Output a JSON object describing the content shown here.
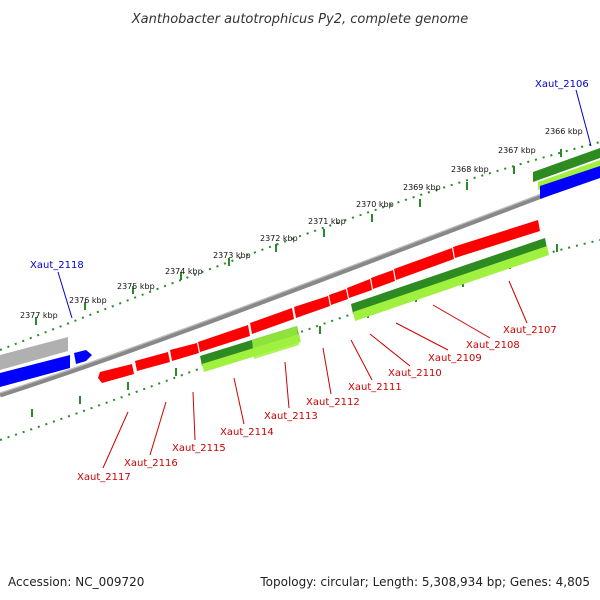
{
  "title": "Xanthobacter autotrophicus Py2, complete genome",
  "footer": {
    "accession": "Accession: NC_009720",
    "stats": "Topology: circular; Length: 5,308,934 bp; Genes: 4,805"
  },
  "colors": {
    "forward_cds": "#ff0000",
    "reverse_cds_dark": "#2e8b22",
    "reverse_cds_light": "#a0f040",
    "forward_gene": "#0000ff",
    "backbone": "#888888",
    "ticks": "#2a8a2a",
    "label_blue": "#0000cc",
    "label_red": "#cc0000"
  },
  "ticks": [
    "2366 kbp",
    "2367 kbp",
    "2368 kbp",
    "2369 kbp",
    "2370 kbp",
    "2371 kbp",
    "2372 kbp",
    "2373 kbp",
    "2374 kbp",
    "2375 kbp",
    "2376 kbp",
    "2377 kbp"
  ],
  "gene_labels": [
    {
      "text": "Xaut_2106",
      "color": "blue"
    },
    {
      "text": "Xaut_2118",
      "color": "blue"
    },
    {
      "text": "Xaut_2107",
      "color": "red"
    },
    {
      "text": "Xaut_2108",
      "color": "red"
    },
    {
      "text": "Xaut_2109",
      "color": "red"
    },
    {
      "text": "Xaut_2110",
      "color": "red"
    },
    {
      "text": "Xaut_2111",
      "color": "red"
    },
    {
      "text": "Xaut_2112",
      "color": "red"
    },
    {
      "text": "Xaut_2113",
      "color": "red"
    },
    {
      "text": "Xaut_2114",
      "color": "red"
    },
    {
      "text": "Xaut_2115",
      "color": "red"
    },
    {
      "text": "Xaut_2116",
      "color": "red"
    },
    {
      "text": "Xaut_2117",
      "color": "red"
    }
  ]
}
